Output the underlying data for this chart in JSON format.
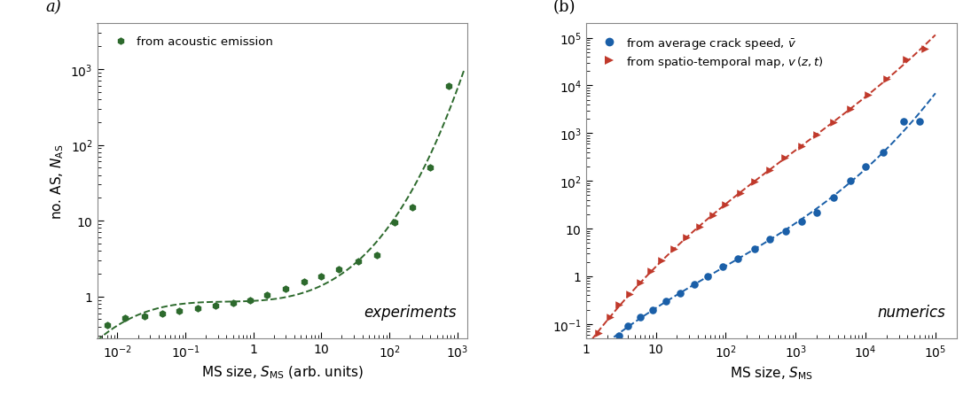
{
  "panel_a": {
    "label": "a)",
    "data_x": [
      0.007,
      0.013,
      0.025,
      0.045,
      0.08,
      0.15,
      0.28,
      0.5,
      0.9,
      1.6,
      3.0,
      5.5,
      10,
      18,
      35,
      65,
      120,
      220,
      400,
      750
    ],
    "data_y": [
      0.42,
      0.52,
      0.55,
      0.6,
      0.65,
      0.7,
      0.75,
      0.82,
      0.9,
      1.05,
      1.25,
      1.55,
      1.85,
      2.3,
      2.9,
      3.5,
      9.5,
      15,
      50,
      600
    ],
    "color": "#2d6a2d",
    "marker": "h",
    "markersize": 6,
    "xlabel": "MS size, $S_{\\mathrm{MS}}$ (arb. units)",
    "ylabel": "no. AS, $N_{\\mathrm{AS}}$",
    "xlim_log": [
      -2.3,
      3.15
    ],
    "ylim": [
      0.28,
      4000
    ],
    "annotation": "experiments",
    "legend_label": "from acoustic emission"
  },
  "panel_b": {
    "label": "(b)",
    "blue_x": [
      3.0,
      4.0,
      6,
      9,
      14,
      22,
      35,
      55,
      90,
      150,
      260,
      430,
      720,
      1200,
      2000,
      3500,
      6000,
      10000,
      18000,
      35000,
      60000
    ],
    "blue_y": [
      0.058,
      0.09,
      0.14,
      0.2,
      0.3,
      0.45,
      0.68,
      1.0,
      1.6,
      2.3,
      3.8,
      6.0,
      9.0,
      14,
      22,
      45,
      100,
      200,
      400,
      1800,
      1800
    ],
    "red_x": [
      1.5,
      2.2,
      3.0,
      4.2,
      6,
      8.5,
      12,
      18,
      27,
      42,
      65,
      100,
      160,
      260,
      420,
      700,
      1200,
      2000,
      3500,
      6000,
      11000,
      20000,
      38000,
      70000
    ],
    "red_y": [
      0.065,
      0.14,
      0.25,
      0.42,
      0.75,
      1.3,
      2.2,
      3.8,
      6.5,
      11,
      19,
      32,
      55,
      95,
      170,
      300,
      530,
      950,
      1700,
      3200,
      6500,
      14000,
      35000,
      60000
    ],
    "blue_color": "#1a5fa8",
    "red_color": "#c0392b",
    "blue_marker": "o",
    "red_marker": ">",
    "markersize": 6,
    "xlabel": "MS size, $S_{\\mathrm{MS}}$",
    "xlim": [
      1,
      200000
    ],
    "ylim": [
      0.05,
      200000
    ],
    "annotation": "numerics",
    "blue_legend": "from average crack speed, $\\bar{v}$",
    "red_legend": "from spatio-temporal map, $v\\,(z,t)$"
  }
}
